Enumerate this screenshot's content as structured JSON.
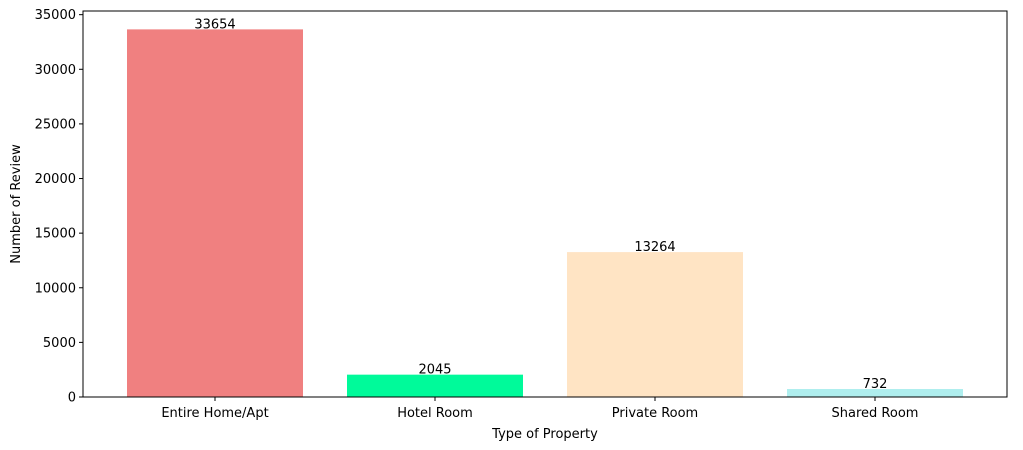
{
  "chart_data": {
    "type": "bar",
    "title": "",
    "xlabel": "Type of Property",
    "ylabel": "Number of Review",
    "categories": [
      "Entire Home/Apt",
      "Hotel Room",
      "Private Room",
      "Shared Room"
    ],
    "values": [
      33654,
      2045,
      13264,
      732
    ],
    "data_labels": [
      "33654",
      "2045",
      "13264",
      "732"
    ],
    "colors": [
      "#f08080",
      "#00fa9a",
      "#ffe4c4",
      "#afeeee"
    ],
    "ylim": [
      0,
      35336
    ],
    "yticks": [
      0,
      5000,
      10000,
      15000,
      20000,
      25000,
      30000,
      35000
    ],
    "grid": false,
    "legend": "none"
  }
}
